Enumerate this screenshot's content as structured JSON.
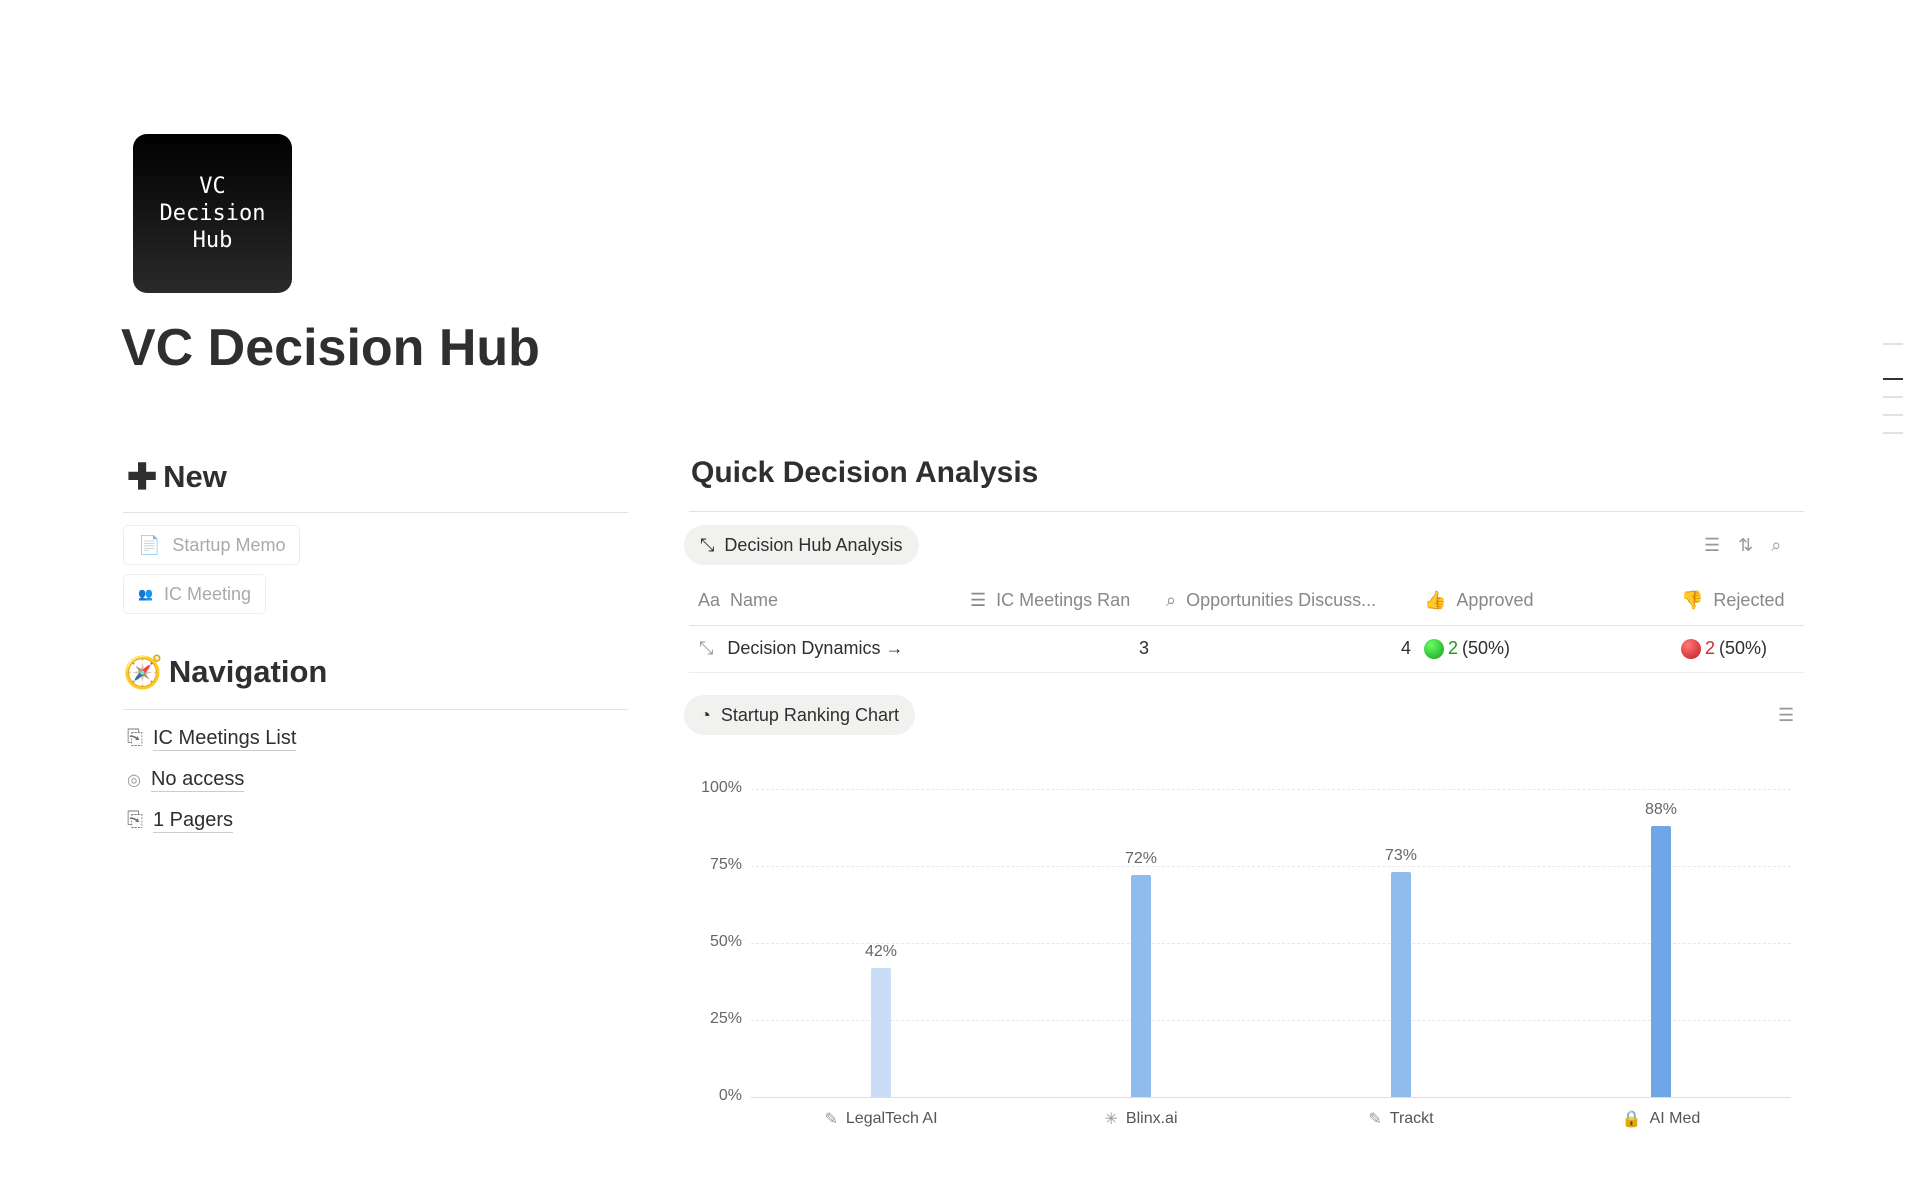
{
  "page": {
    "icon_text": "VC\nDecision\nHub",
    "title": "VC Decision Hub"
  },
  "new_section": {
    "heading": "New",
    "buttons": [
      {
        "label": "Startup Memo",
        "icon": "document-plus-icon"
      },
      {
        "label": "IC Meeting",
        "icon": "people-icon"
      }
    ]
  },
  "navigation": {
    "heading": "Navigation",
    "links": [
      {
        "label": "IC Meetings List",
        "icon": "page-link-icon"
      },
      {
        "label": "No access",
        "icon": "eye-off-icon"
      },
      {
        "label": "1 Pagers",
        "icon": "page-link-icon"
      }
    ]
  },
  "analysis": {
    "heading": "Quick Decision Analysis",
    "table_view": {
      "label": "Decision Hub Analysis",
      "columns": [
        "Name",
        "IC Meetings Ran",
        "Opportunities Discuss...",
        "Approved",
        "Rejected"
      ],
      "rows": [
        {
          "name": "Decision Dynamics →",
          "ic_meetings": "3",
          "opportunities": "4",
          "approved": "2",
          "approved_pct": "(50%)",
          "rejected": "2",
          "rejected_pct": "(50%)"
        }
      ]
    },
    "chart_view": {
      "label": "Startup Ranking Chart"
    }
  },
  "colors": {
    "approved": "#1a9c1a",
    "rejected": "#d02b2b",
    "bar_light": "#c9ddf6",
    "bar_mid": "#8fbbed",
    "bar_dark": "#6ea6e6"
  },
  "chart_data": {
    "type": "bar",
    "categories": [
      "LegalTech AI",
      "Blinx.ai",
      "Trackt",
      "AI Med"
    ],
    "category_icons": [
      "edit-icon",
      "sparkle-icon",
      "edit-icon",
      "lock-icon"
    ],
    "values": [
      42,
      72,
      73,
      88
    ],
    "data_labels": [
      "42%",
      "72%",
      "73%",
      "88%"
    ],
    "yticks": [
      "0%",
      "25%",
      "50%",
      "75%",
      "100%"
    ],
    "ylim": [
      0,
      100
    ],
    "grid": true
  }
}
